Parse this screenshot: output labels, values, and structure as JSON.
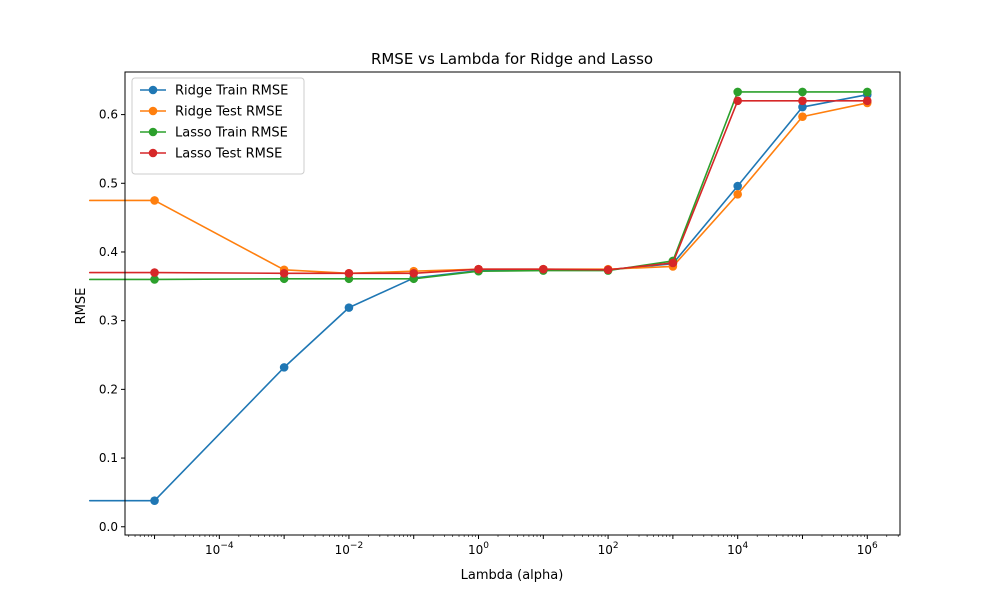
{
  "chart_data": {
    "type": "line",
    "title": "RMSE vs Lambda for Ridge and Lasso",
    "xlabel": "Lambda (alpha)",
    "ylabel": "RMSE",
    "xscale": "log",
    "x": [
      1e-06,
      1e-05,
      0.001,
      0.01,
      0.1,
      1,
      10,
      100,
      1000,
      10000,
      100000,
      1000000
    ],
    "xlim": [
      3.5e-06,
      3200000.0
    ],
    "ylim": [
      -0.012,
      0.662
    ],
    "xticks": [
      {
        "value": 0.0001,
        "base": "10",
        "exp": "−4"
      },
      {
        "value": 0.01,
        "base": "10",
        "exp": "−2"
      },
      {
        "value": 1,
        "base": "10",
        "exp": "0"
      },
      {
        "value": 100,
        "base": "10",
        "exp": "2"
      },
      {
        "value": 10000,
        "base": "10",
        "exp": "4"
      },
      {
        "value": 1000000,
        "base": "10",
        "exp": "6"
      }
    ],
    "yticks": [
      {
        "value": 0.0,
        "label": "0.0"
      },
      {
        "value": 0.1,
        "label": "0.1"
      },
      {
        "value": 0.2,
        "label": "0.2"
      },
      {
        "value": 0.3,
        "label": "0.3"
      },
      {
        "value": 0.4,
        "label": "0.4"
      },
      {
        "value": 0.5,
        "label": "0.5"
      },
      {
        "value": 0.6,
        "label": "0.6"
      }
    ],
    "grid": false,
    "legend_position": "top-left",
    "series": [
      {
        "name": "Ridge Train RMSE",
        "color": "#1f77b4",
        "values": [
          0.038,
          0.038,
          0.232,
          0.319,
          0.362,
          0.373,
          0.374,
          0.374,
          0.383,
          0.496,
          0.611,
          0.629
        ]
      },
      {
        "name": "Ridge Test RMSE",
        "color": "#ff7f0e",
        "values": [
          0.475,
          0.475,
          0.374,
          0.369,
          0.372,
          0.375,
          0.375,
          0.375,
          0.379,
          0.484,
          0.597,
          0.617
        ]
      },
      {
        "name": "Lasso Train RMSE",
        "color": "#2ca02c",
        "values": [
          0.36,
          0.36,
          0.361,
          0.361,
          0.361,
          0.372,
          0.373,
          0.373,
          0.387,
          0.633,
          0.633,
          0.633
        ]
      },
      {
        "name": "Lasso Test RMSE",
        "color": "#d62728",
        "values": [
          0.37,
          0.37,
          0.369,
          0.369,
          0.369,
          0.375,
          0.375,
          0.374,
          0.384,
          0.62,
          0.62,
          0.62
        ]
      }
    ]
  }
}
